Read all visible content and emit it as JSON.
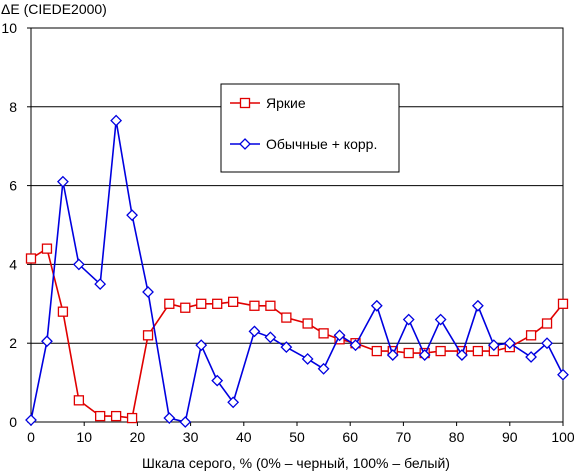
{
  "chart_data": {
    "type": "line",
    "ylabel": "ΔE (CIEDE2000)",
    "xlabel": "Шкала серого, % (0% – черный, 100% – белый)",
    "xlim": [
      0,
      100
    ],
    "ylim": [
      0,
      10
    ],
    "x_ticks": [
      0,
      10,
      20,
      30,
      40,
      50,
      60,
      70,
      80,
      90,
      100
    ],
    "y_ticks": [
      0,
      2,
      4,
      6,
      8,
      10
    ],
    "grid": "horizontal",
    "legend_position": "upper-center",
    "series": [
      {
        "name": "Яркие",
        "color": "#e00000",
        "marker": "square",
        "x": [
          0,
          3,
          6,
          9,
          13,
          16,
          19,
          22,
          26,
          29,
          32,
          35,
          38,
          42,
          45,
          48,
          52,
          55,
          58,
          61,
          65,
          68,
          71,
          74,
          77,
          81,
          84,
          87,
          90,
          94,
          97,
          100
        ],
        "y": [
          4.15,
          4.4,
          2.8,
          0.55,
          0.15,
          0.15,
          0.1,
          2.2,
          3.0,
          2.9,
          3.0,
          3.0,
          3.05,
          2.95,
          2.95,
          2.65,
          2.5,
          2.25,
          2.1,
          2.0,
          1.8,
          1.8,
          1.75,
          1.75,
          1.8,
          1.8,
          1.8,
          1.8,
          1.9,
          2.2,
          2.5,
          3.0
        ]
      },
      {
        "name": "Обычные + корр.",
        "color": "#0000e0",
        "marker": "diamond",
        "x": [
          0,
          3,
          6,
          9,
          13,
          16,
          19,
          22,
          26,
          29,
          32,
          35,
          38,
          42,
          45,
          48,
          52,
          55,
          58,
          61,
          65,
          68,
          71,
          74,
          77,
          81,
          84,
          87,
          90,
          94,
          97,
          100
        ],
        "y": [
          0.05,
          2.05,
          6.1,
          4.0,
          3.5,
          7.65,
          5.25,
          3.3,
          0.1,
          0.0,
          1.95,
          1.05,
          0.5,
          2.3,
          2.15,
          1.9,
          1.6,
          1.35,
          2.2,
          1.95,
          2.95,
          1.7,
          2.6,
          1.7,
          2.6,
          1.7,
          2.95,
          1.95,
          2.0,
          1.65,
          2.0,
          1.2
        ]
      }
    ]
  }
}
